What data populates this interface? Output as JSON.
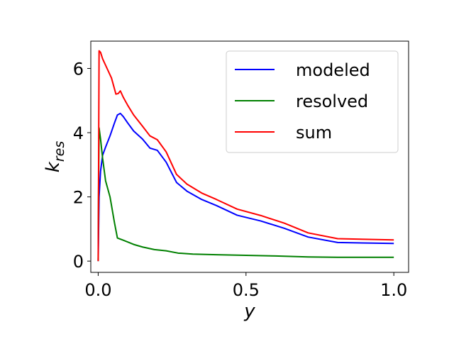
{
  "chart_data": {
    "type": "line",
    "title": "",
    "xlabel": "y",
    "ylabel": "k",
    "ylabel_subscript": "res",
    "xlim": [
      -0.025,
      1.05
    ],
    "ylim": [
      -0.35,
      6.85
    ],
    "xticks": [
      0.0,
      0.5,
      1.0
    ],
    "xtick_labels": [
      "0.0",
      "0.5",
      "1.0"
    ],
    "yticks": [
      0,
      2,
      4,
      6
    ],
    "ytick_labels": [
      "0",
      "2",
      "4",
      "6"
    ],
    "grid": false,
    "legend_position": "top-right",
    "series": [
      {
        "name": "modeled",
        "color": "#0000ff",
        "x": [
          0.0,
          0.003,
          0.008,
          0.015,
          0.025,
          0.04,
          0.055,
          0.065,
          0.075,
          0.085,
          0.1,
          0.12,
          0.15,
          0.175,
          0.2,
          0.23,
          0.265,
          0.3,
          0.35,
          0.4,
          0.47,
          0.55,
          0.63,
          0.71,
          0.81,
          1.0
        ],
        "y": [
          0.0,
          2.0,
          2.8,
          3.3,
          3.55,
          3.9,
          4.3,
          4.55,
          4.6,
          4.5,
          4.3,
          4.05,
          3.8,
          3.52,
          3.45,
          3.08,
          2.45,
          2.18,
          1.92,
          1.73,
          1.43,
          1.25,
          1.02,
          0.75,
          0.58,
          0.55
        ]
      },
      {
        "name": "resolved",
        "color": "#008000",
        "x": [
          0.0,
          0.001,
          0.003,
          0.008,
          0.015,
          0.025,
          0.04,
          0.055,
          0.065,
          0.085,
          0.12,
          0.15,
          0.19,
          0.23,
          0.27,
          0.32,
          0.4,
          0.5,
          0.6,
          0.71,
          0.81,
          1.0
        ],
        "y": [
          0.0,
          2.0,
          4.15,
          3.8,
          3.2,
          2.5,
          2.0,
          1.2,
          0.72,
          0.65,
          0.52,
          0.44,
          0.36,
          0.32,
          0.25,
          0.22,
          0.2,
          0.18,
          0.16,
          0.13,
          0.12,
          0.12
        ]
      },
      {
        "name": "sum",
        "color": "#ff0000",
        "x": [
          0.0,
          0.003,
          0.008,
          0.015,
          0.03,
          0.045,
          0.06,
          0.068,
          0.075,
          0.085,
          0.1,
          0.12,
          0.15,
          0.175,
          0.2,
          0.23,
          0.265,
          0.3,
          0.35,
          0.4,
          0.47,
          0.55,
          0.63,
          0.71,
          0.81,
          1.0
        ],
        "y": [
          0.0,
          6.55,
          6.5,
          6.3,
          6.0,
          5.7,
          5.2,
          5.22,
          5.3,
          5.1,
          4.85,
          4.55,
          4.2,
          3.9,
          3.78,
          3.4,
          2.7,
          2.4,
          2.12,
          1.92,
          1.62,
          1.42,
          1.18,
          0.88,
          0.7,
          0.66
        ]
      }
    ]
  }
}
